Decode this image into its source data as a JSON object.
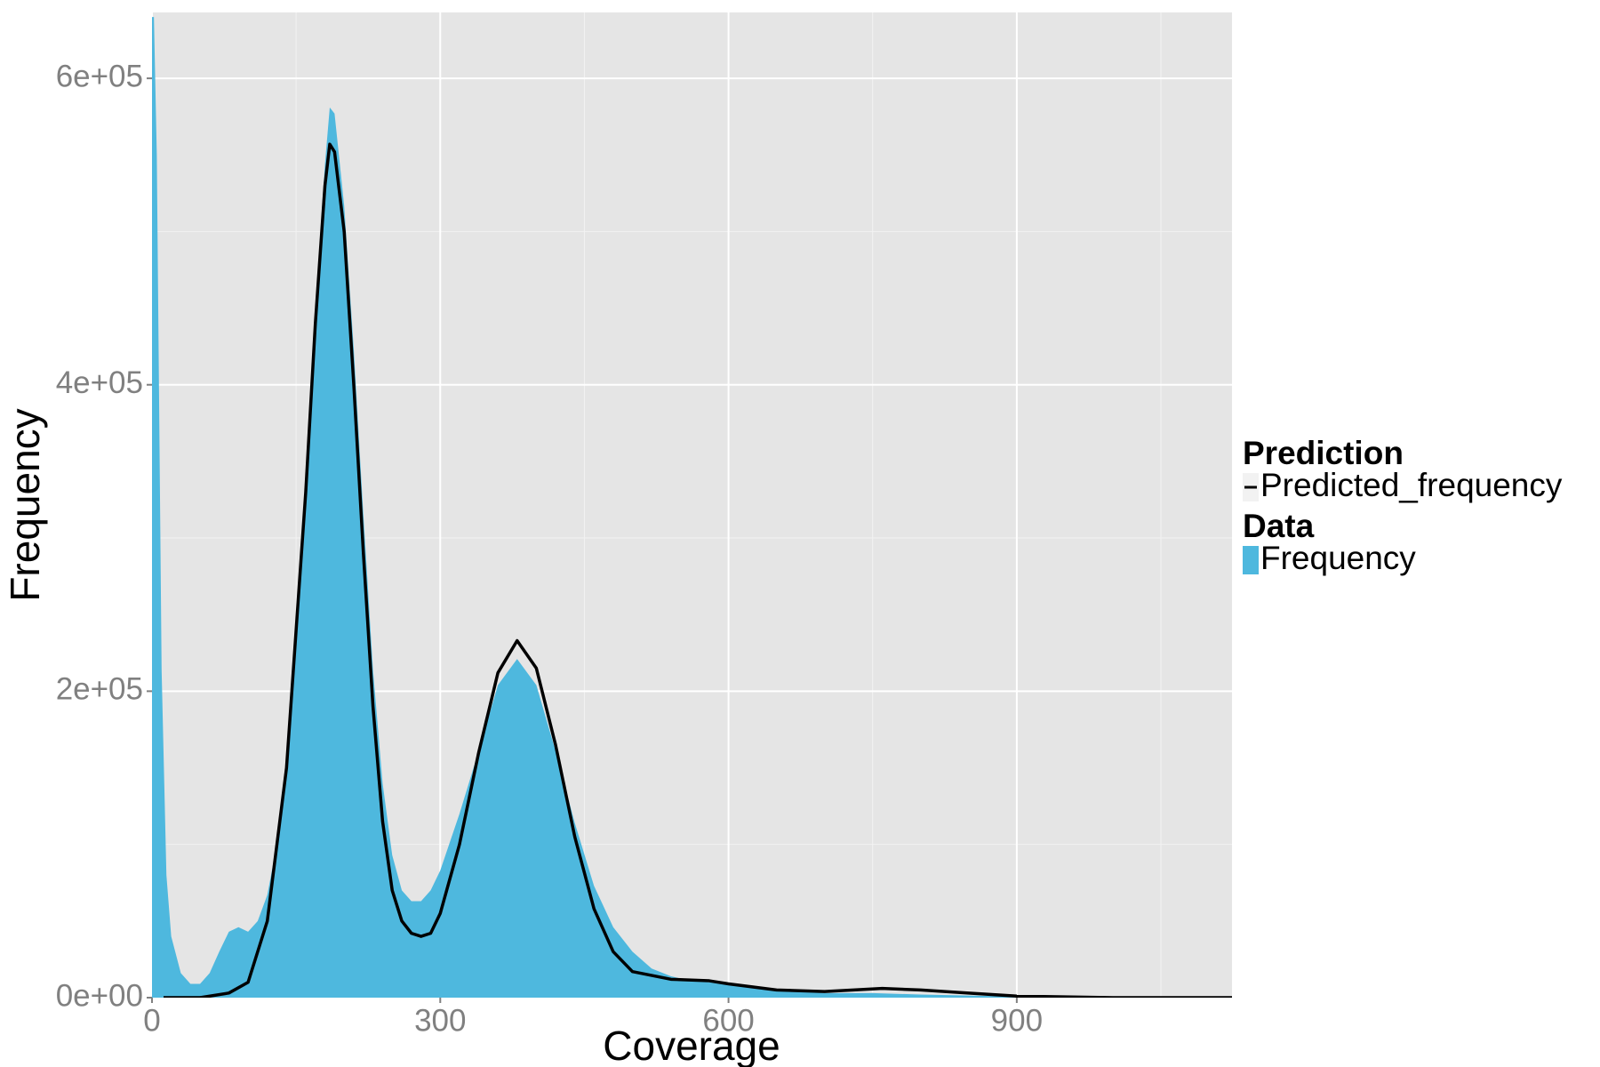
{
  "chart_data": {
    "type": "area-line",
    "x_label": "Coverage",
    "y_label": "Frequency",
    "xlim": [
      0,
      1124
    ],
    "ylim": [
      0,
      643000
    ],
    "xticks": [
      0,
      300,
      600,
      900
    ],
    "yticks": [
      {
        "value": 0,
        "label": "0e+00"
      },
      {
        "value": 200000,
        "label": "2e+05"
      },
      {
        "value": 400000,
        "label": "4e+05"
      },
      {
        "value": 600000,
        "label": "6e+05"
      }
    ],
    "x_minor_ticks": [
      150,
      450,
      750,
      1050
    ],
    "y_minor_ticks": [
      100000,
      300000,
      500000
    ],
    "grid": true,
    "background": "#e5e5e5",
    "legend": "right",
    "series": [
      {
        "name": "Predicted_frequency",
        "legend_title": "Prediction",
        "type": "line",
        "color": "#000000",
        "x": [
          12,
          50,
          80,
          100,
          120,
          140,
          160,
          170,
          180,
          185,
          190,
          200,
          210,
          220,
          230,
          240,
          250,
          260,
          270,
          280,
          290,
          300,
          320,
          340,
          360,
          380,
          400,
          420,
          440,
          460,
          480,
          500,
          540,
          580,
          600,
          650,
          700,
          760,
          800,
          850,
          900,
          1000,
          1124
        ],
        "values": [
          0,
          0,
          3000,
          10000,
          50000,
          150000,
          330000,
          440000,
          530000,
          557000,
          552000,
          500000,
          400000,
          290000,
          190000,
          115000,
          70000,
          50000,
          42000,
          40000,
          42000,
          55000,
          100000,
          160000,
          212000,
          233000,
          215000,
          165000,
          105000,
          58000,
          30000,
          17000,
          12000,
          11000,
          9000,
          5000,
          4000,
          6000,
          5000,
          3000,
          1000,
          0,
          0
        ]
      },
      {
        "name": "Frequency",
        "legend_title": "Data",
        "type": "area",
        "color": "#4eb8de",
        "x": [
          0,
          2,
          5,
          10,
          15,
          20,
          30,
          40,
          50,
          60,
          70,
          80,
          90,
          100,
          110,
          120,
          130,
          140,
          150,
          160,
          170,
          180,
          185,
          190,
          200,
          210,
          220,
          230,
          240,
          250,
          260,
          270,
          280,
          290,
          300,
          320,
          340,
          360,
          380,
          400,
          420,
          440,
          460,
          480,
          500,
          520,
          540,
          560,
          600,
          650,
          700,
          750,
          800,
          900,
          1000,
          1124
        ],
        "values": [
          640000,
          640000,
          550000,
          214000,
          80000,
          40000,
          16000,
          9000,
          9000,
          16000,
          30000,
          43000,
          46000,
          43000,
          50000,
          67000,
          100000,
          154000,
          235000,
          335000,
          450000,
          544000,
          581000,
          577000,
          517000,
          423000,
          315000,
          214000,
          140000,
          93000,
          70000,
          63000,
          63000,
          70000,
          83000,
          120000,
          161000,
          204000,
          221000,
          204000,
          161000,
          114000,
          73000,
          46000,
          30000,
          19000,
          14000,
          11000,
          9000,
          5000,
          3000,
          3000,
          2000,
          700,
          200,
          0
        ]
      }
    ]
  }
}
